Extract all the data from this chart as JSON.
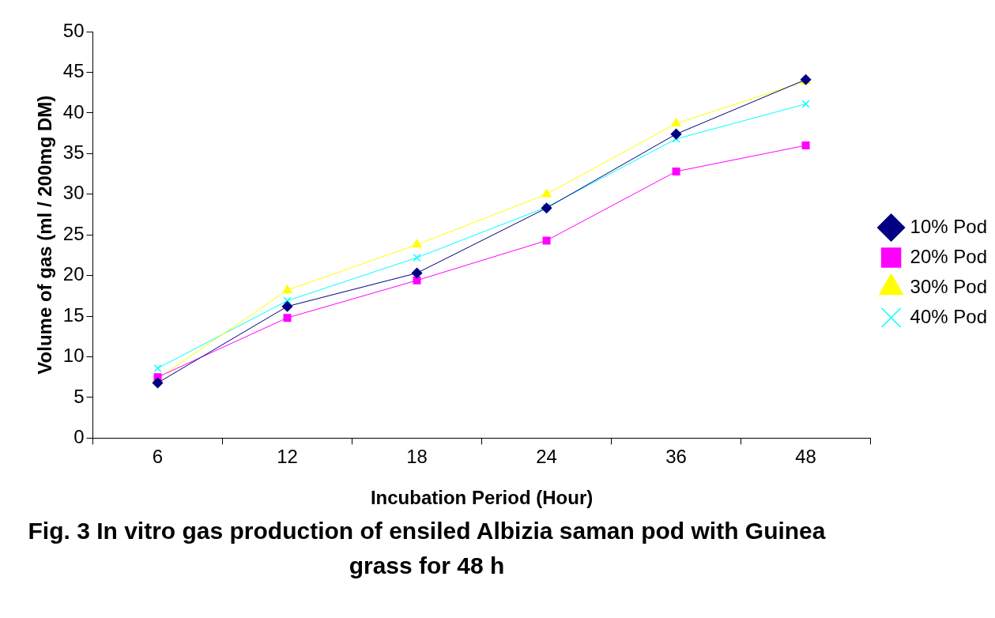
{
  "chart_data": {
    "type": "line",
    "title": "Fig. 3 In vitro gas production of ensiled Albizia saman pod with Guinea grass for 48 h",
    "xlabel": "Incubation Period (Hour)",
    "ylabel": "Volume of gas (ml / 200mg DM)",
    "categories": [
      "6",
      "12",
      "18",
      "24",
      "36",
      "48"
    ],
    "ylim": [
      0,
      50
    ],
    "yticks": [
      0,
      5,
      10,
      15,
      20,
      25,
      30,
      35,
      40,
      45,
      50
    ],
    "grid": false,
    "legend": "right",
    "series": [
      {
        "name": "10% Pod",
        "color": "#000080",
        "marker": "diamond",
        "values": [
          6.8,
          16.2,
          20.3,
          28.3,
          37.4,
          44.1
        ]
      },
      {
        "name": "20% Pod",
        "color": "#ff00ff",
        "marker": "square",
        "values": [
          7.5,
          14.8,
          19.4,
          24.3,
          32.8,
          36.0
        ]
      },
      {
        "name": "30% Pod",
        "color": "#ffff00",
        "marker": "triangle",
        "values": [
          7.3,
          18.2,
          23.8,
          30.0,
          38.7,
          43.9
        ]
      },
      {
        "name": "40% Pod",
        "color": "#00ffff",
        "marker": "cross",
        "values": [
          8.6,
          16.9,
          22.2,
          28.4,
          36.8,
          41.1
        ]
      }
    ]
  }
}
